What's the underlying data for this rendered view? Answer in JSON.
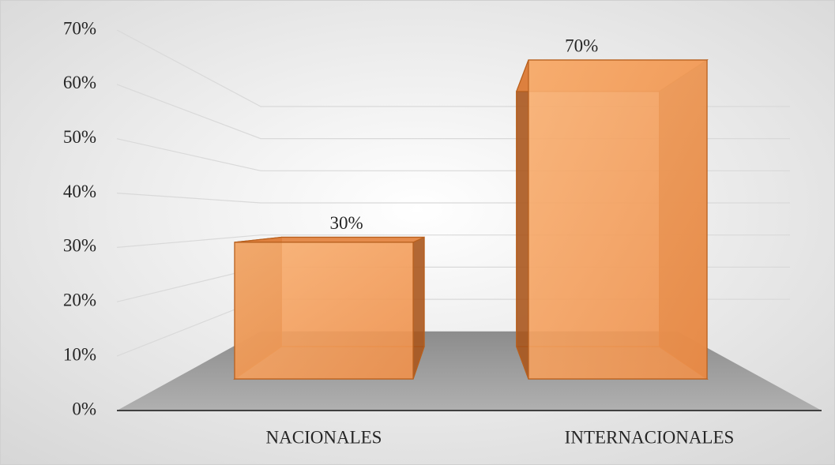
{
  "chart_data": {
    "type": "bar3d",
    "categories": [
      "NACIONALES",
      "INTERNACIONALES"
    ],
    "values": [
      30,
      70
    ],
    "value_labels": [
      "30%",
      "70%"
    ],
    "color": "#f4a262",
    "ylim": [
      0,
      70
    ],
    "yticks": [
      {
        "value": 0,
        "label": "0%"
      },
      {
        "value": 10,
        "label": "10%"
      },
      {
        "value": 20,
        "label": "20%"
      },
      {
        "value": 30,
        "label": "30%"
      },
      {
        "value": 40,
        "label": "40%"
      },
      {
        "value": 50,
        "label": "50%"
      },
      {
        "value": 60,
        "label": "60%"
      },
      {
        "value": 70,
        "label": "70%"
      }
    ],
    "grid": true
  }
}
